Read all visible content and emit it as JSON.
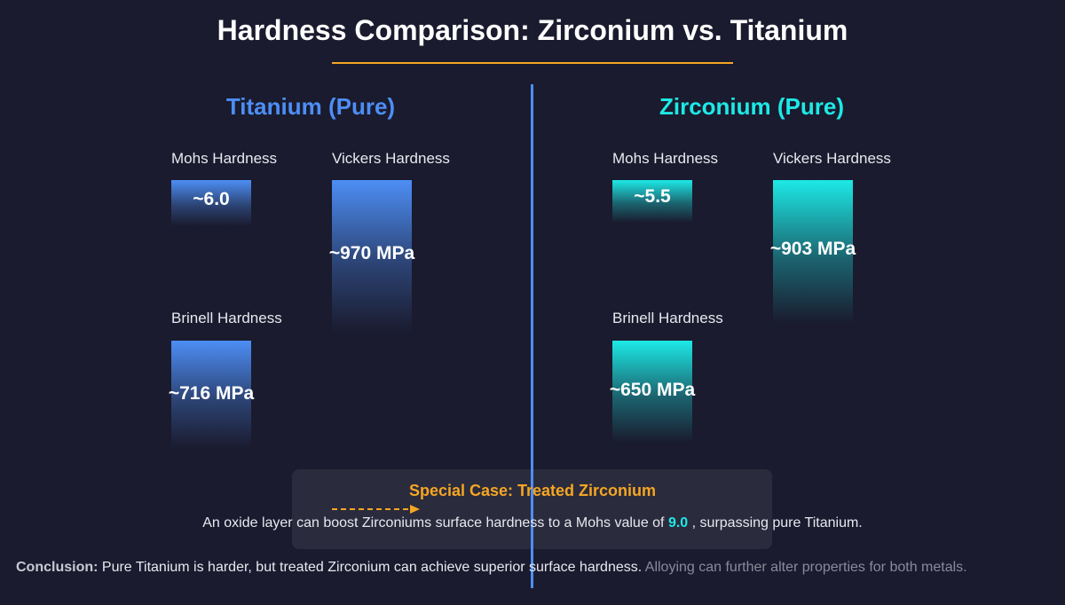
{
  "title": "Hardness Comparison: Zirconium vs. Titanium",
  "panels": [
    {
      "title": "Titanium (Pure)",
      "metrics": [
        {
          "label": "Mohs Hardness",
          "value": "~6.0"
        },
        {
          "label": "Vickers Hardness",
          "value": "~970 MPa"
        },
        {
          "label": "Brinell Hardness",
          "value": "~716 MPa"
        }
      ]
    },
    {
      "title": "Zirconium (Pure)",
      "metrics": [
        {
          "label": "Mohs Hardness",
          "value": "~5.5"
        },
        {
          "label": "Vickers Hardness",
          "value": "~903 MPa"
        },
        {
          "label": "Brinell Hardness",
          "value": "~650 MPa"
        }
      ]
    }
  ],
  "special": {
    "title": "Special Case: Treated Zirconium",
    "text_before": "An oxide layer can boost Zirconiums surface hardness to a Mohs value of",
    "highlight": "9.0",
    "text_after": ", surpassing pure Titanium."
  },
  "conclusion": {
    "label": "Conclusion:",
    "text": "Pure Titanium is harder, but treated Zirconium can achieve superior surface hardness.",
    "note": "Alloying can further alter properties for both metals."
  }
}
